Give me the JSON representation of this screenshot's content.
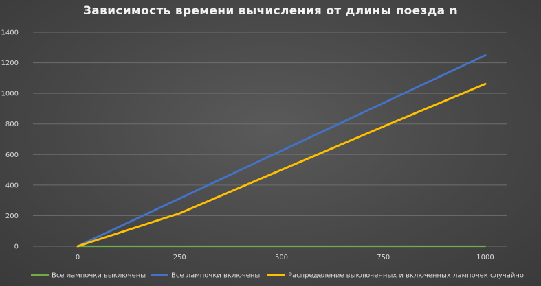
{
  "chart_data": {
    "type": "line",
    "title": "Зависимость времени вычисления от длины поезда n",
    "xlabel": "",
    "ylabel": "",
    "x": [
      0,
      250,
      500,
      750,
      1000
    ],
    "x_ticks": [
      "0",
      "250",
      "500",
      "750",
      "1000"
    ],
    "y_ticks": [
      "0",
      "200",
      "400",
      "600",
      "800",
      "1000",
      "1200",
      "1400"
    ],
    "ylim": [
      0,
      1400
    ],
    "grid": true,
    "legend_position": "bottom",
    "series": [
      {
        "name": "Все лампочки выключены",
        "color": "#70ad47",
        "values": [
          0,
          0,
          0,
          0,
          0
        ]
      },
      {
        "name": "Все лампочки включены",
        "color": "#4472c4",
        "values": [
          0,
          312,
          625,
          937,
          1250
        ]
      },
      {
        "name": "Распределение выключенных и включенных лампочек случайно",
        "color": "#ffc000",
        "values": [
          0,
          215,
          500,
          783,
          1062
        ]
      }
    ]
  }
}
